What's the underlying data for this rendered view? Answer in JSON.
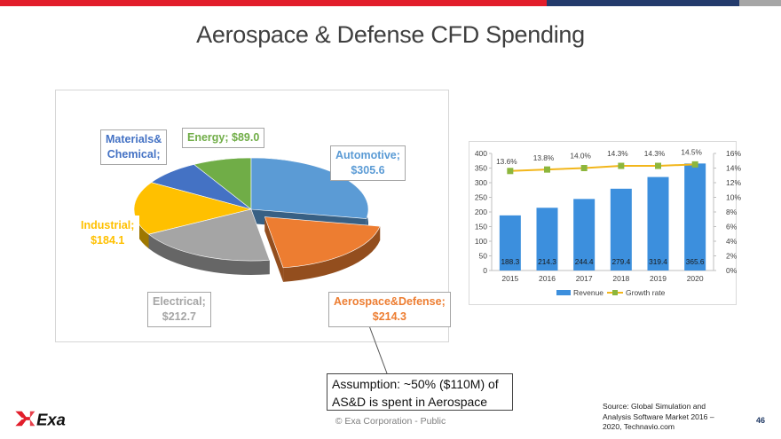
{
  "slide": {
    "title": "Aerospace & Defense CFD Spending",
    "copyright": "© Exa Corporation - Public",
    "page_number": "46",
    "logo_text": "Exa"
  },
  "colors": {
    "bar_red": "#e21e2b",
    "bar_navy": "#243b6c",
    "bar_gray": "#a6a6a6"
  },
  "assumption": {
    "line1": "Assumption: ~50% ($110M) of",
    "line2": "AS&D is spent in Aerospace"
  },
  "source": {
    "line1": "Source: Global Simulation and",
    "line2": "Analysis Software Market 2016 –",
    "line3": "2020, Technavio.com"
  },
  "chart_data": [
    {
      "type": "pie",
      "title": "",
      "slices": [
        {
          "name": "Automotive;",
          "value_label": "$305.6",
          "value": 305.6,
          "color": "#5b9bd5",
          "label_color": "#5b9bd5"
        },
        {
          "name": "Aerospace&Defense;",
          "value_label": "$214.3",
          "value": 214.3,
          "color": "#ed7d31",
          "label_color": "#ed7d31"
        },
        {
          "name": "Electrical;",
          "value_label": "$212.7",
          "value": 212.7,
          "color": "#a5a5a5",
          "label_color": "#a5a5a5"
        },
        {
          "name": "Industrial;",
          "value_label": "$184.1",
          "value": 184.1,
          "color": "#ffc000",
          "label_color": "#ffc000"
        },
        {
          "name": "Materials& Chemical;",
          "value_label": "",
          "value": 89.0,
          "color": "#4472c4",
          "label_color": "#4472c4"
        },
        {
          "name": "Energy; $89.0",
          "value_label": "",
          "value": 89.0,
          "color": "#70ad47",
          "label_color": "#70ad47"
        }
      ]
    },
    {
      "type": "bar",
      "title": "",
      "categories": [
        "2015",
        "2016",
        "2017",
        "2018",
        "2019",
        "2020"
      ],
      "series": [
        {
          "name": "Revenue",
          "values": [
            188.3,
            214.3,
            244.4,
            279.4,
            319.4,
            365.6
          ],
          "color": "#3c8fdd",
          "data_labels": [
            "188.3",
            "214.3",
            "244.4",
            "279.4",
            "319.4",
            "365.6"
          ]
        },
        {
          "name": "Growth rate",
          "values": [
            13.6,
            13.8,
            14.0,
            14.3,
            14.3,
            14.5
          ],
          "color": "#f2b61b",
          "data_labels": [
            "13.6%",
            "13.8%",
            "14.0%",
            "14.3%",
            "14.3%",
            "14.5%"
          ],
          "axis": "right"
        }
      ],
      "ylim": [
        0,
        400
      ],
      "y_ticks": [
        "0",
        "50",
        "100",
        "150",
        "200",
        "250",
        "300",
        "350",
        "400"
      ],
      "y2lim": [
        0,
        16
      ],
      "y2_ticks": [
        "0%",
        "2%",
        "4%",
        "6%",
        "8%",
        "10%",
        "12%",
        "14%",
        "16%"
      ],
      "legend_position": "bottom",
      "grid": false
    }
  ]
}
